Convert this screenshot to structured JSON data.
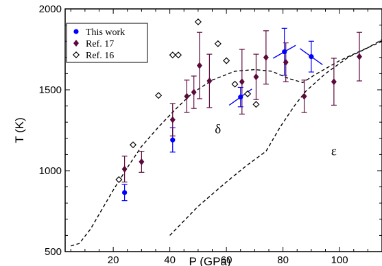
{
  "chart_data": {
    "type": "scatter",
    "title": "",
    "xlabel": "P (GPa)",
    "ylabel": "T (K)",
    "xlim": [
      3,
      115
    ],
    "ylim": [
      500,
      2000
    ],
    "xticks": [
      20,
      40,
      60,
      80,
      100
    ],
    "yticks": [
      500,
      1000,
      1500,
      2000
    ],
    "xtick_labels": [
      "20",
      "40",
      "60",
      "80",
      "100"
    ],
    "ytick_labels": [
      "500",
      "1000",
      "1500",
      "2000"
    ],
    "grid": false,
    "legend_position": "top-left",
    "series": [
      {
        "name": "This work",
        "marker": "filled-circle",
        "color": "#0000ff",
        "points": [
          {
            "x": 24,
            "y": 865,
            "err": 50
          },
          {
            "x": 41,
            "y": 1190,
            "err": 75
          },
          {
            "x": 65,
            "y": 1455,
            "err": 60,
            "slope": [
              -4,
              -50,
              4,
              50
            ]
          },
          {
            "x": 80.5,
            "y": 1735,
            "err": 145,
            "slope": [
              -4,
              -40,
              4,
              40
            ]
          },
          {
            "x": 90,
            "y": 1705,
            "err": 95,
            "slope": [
              -4,
              50,
              4,
              -50
            ]
          }
        ]
      },
      {
        "name": "Ref. 17",
        "marker": "filled-diamond",
        "color": "#5c0a3c",
        "points": [
          {
            "x": 24,
            "y": 1010,
            "err": 80
          },
          {
            "x": 30,
            "y": 1055,
            "err": 65
          },
          {
            "x": 41,
            "y": 1315,
            "err": 100
          },
          {
            "x": 46,
            "y": 1460,
            "err": 100
          },
          {
            "x": 48.5,
            "y": 1485,
            "err": 100
          },
          {
            "x": 50.5,
            "y": 1650,
            "err": 205
          },
          {
            "x": 54,
            "y": 1555,
            "err": 165
          },
          {
            "x": 65.5,
            "y": 1550,
            "err": 200
          },
          {
            "x": 70.5,
            "y": 1580,
            "err": 140
          },
          {
            "x": 74,
            "y": 1700,
            "err": 165
          },
          {
            "x": 81,
            "y": 1670,
            "err": 120
          },
          {
            "x": 87.5,
            "y": 1460,
            "err": 100
          },
          {
            "x": 98,
            "y": 1550,
            "err": 145
          },
          {
            "x": 107,
            "y": 1705,
            "err": 150
          }
        ]
      },
      {
        "name": "Ref. 16",
        "marker": "open-diamond",
        "color": "#000000",
        "points": [
          {
            "x": 22,
            "y": 945
          },
          {
            "x": 27,
            "y": 1160
          },
          {
            "x": 36,
            "y": 1465
          },
          {
            "x": 41,
            "y": 1715
          },
          {
            "x": 43,
            "y": 1715
          },
          {
            "x": 50,
            "y": 1920
          },
          {
            "x": 57,
            "y": 1785
          },
          {
            "x": 60,
            "y": 1680
          },
          {
            "x": 63,
            "y": 1535
          },
          {
            "x": 67.5,
            "y": 1475
          },
          {
            "x": 70.5,
            "y": 1410
          }
        ]
      }
    ],
    "boundaries": [
      {
        "style": "dashed",
        "points": [
          [
            5,
            535
          ],
          [
            8,
            550
          ],
          [
            12,
            640
          ],
          [
            16,
            760
          ],
          [
            20,
            880
          ],
          [
            25,
            1020
          ],
          [
            30,
            1150
          ],
          [
            36,
            1270
          ],
          [
            42,
            1380
          ],
          [
            48,
            1480
          ],
          [
            55,
            1560
          ],
          [
            63,
            1615
          ],
          [
            70,
            1625
          ],
          [
            76,
            1615
          ],
          [
            82,
            1570
          ],
          [
            87,
            1545
          ],
          [
            91,
            1590
          ],
          [
            100,
            1680
          ],
          [
            108,
            1745
          ],
          [
            115,
            1800
          ]
        ]
      },
      {
        "style": "dashed",
        "points": [
          [
            40,
            600
          ],
          [
            50,
            780
          ],
          [
            60,
            930
          ],
          [
            67,
            1030
          ],
          [
            74,
            1120
          ],
          [
            79,
            1270
          ],
          [
            84,
            1400
          ],
          [
            88,
            1490
          ],
          [
            95,
            1600
          ],
          [
            103,
            1700
          ],
          [
            110,
            1760
          ],
          [
            115,
            1810
          ]
        ]
      }
    ],
    "annotations": [
      {
        "text": "δ",
        "x": 57,
        "y": 1230
      },
      {
        "text": "ε",
        "x": 98,
        "y": 1095
      }
    ]
  }
}
